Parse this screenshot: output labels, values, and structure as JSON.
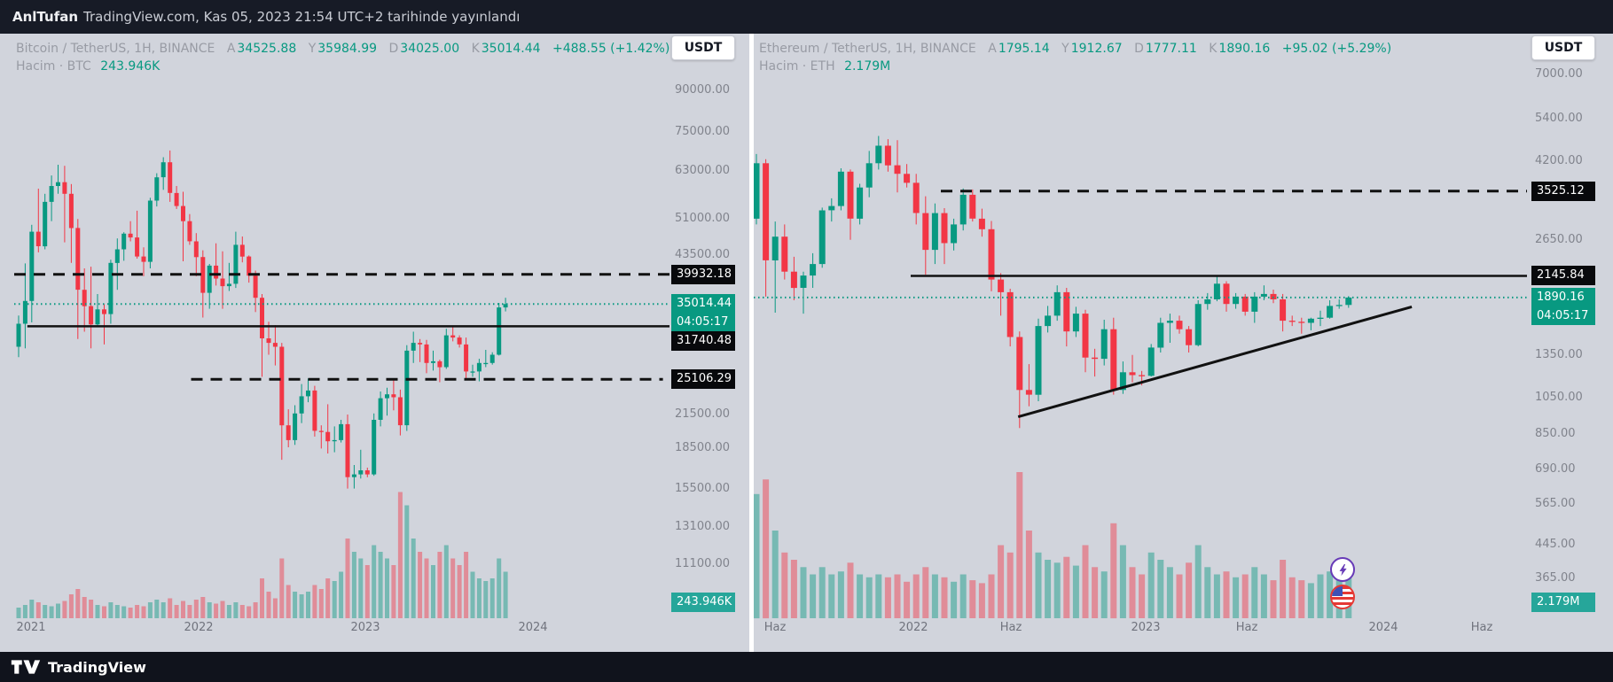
{
  "topbar": {
    "user": "AnlTufan",
    "rest": "TradingView.com, Kas 05, 2023 21:54 UTC+2 tarihinde yayınlandı"
  },
  "bottombar": {
    "brand": "TradingView"
  },
  "colors": {
    "up": "#089981",
    "down": "#f23645",
    "vol_up": "rgba(8,153,129,0.45)",
    "vol_down": "rgba(242,54,69,0.45)",
    "level_line": "#111111",
    "last_price_line": "#089981",
    "background": "#d1d4dc",
    "bar_dark": "#171b26"
  },
  "panels": [
    {
      "currency": "USDT",
      "header": {
        "symbol": "Bitcoin / TetherUS, 1H, BINANCE",
        "o_l": "A",
        "o_v": "34525.88",
        "h_l": "Y",
        "h_v": "35984.99",
        "l_l": "D",
        "l_v": "34025.00",
        "c_l": "K",
        "c_v": "35014.44",
        "change": "+488.55 (+1.42%)",
        "vol_label": "Hacim · BTC",
        "vol_value": "243.946K"
      },
      "last_price_text": "35014.44",
      "countdown": "04:05:17"
    },
    {
      "currency": "USDT",
      "header": {
        "symbol": "Ethereum / TetherUS, 1H, BINANCE",
        "o_l": "A",
        "o_v": "1795.14",
        "h_l": "Y",
        "h_v": "1912.67",
        "l_l": "D",
        "l_v": "1777.11",
        "c_l": "K",
        "c_v": "1890.16",
        "change": "+95.02 (+5.29%)",
        "vol_label": "Hacim · ETH",
        "vol_value": "2.179M"
      },
      "last_price_text": "1890.16",
      "countdown": "04:05:17"
    }
  ],
  "chart_data": [
    {
      "type": "candlestick",
      "title": "Bitcoin / TetherUS, 1H, BINANCE",
      "quote_currency": "USDT",
      "y_axis": {
        "scale": "log",
        "ticks": [
          "90000.00",
          "75000.00",
          "63000.00",
          "51000.00",
          "43500.00",
          "21500.00",
          "18500.00",
          "15500.00",
          "13100.00",
          "11100.00"
        ]
      },
      "x_ticks": [
        {
          "label": "2021",
          "f": 0.026
        },
        {
          "label": "2022",
          "f": 0.281
        },
        {
          "label": "2023",
          "f": 0.536
        },
        {
          "label": "2024",
          "f": 0.792
        }
      ],
      "last_price": 35014.44,
      "levels": [
        {
          "price": 39932.18,
          "label": "39932.18",
          "style": "dashed",
          "x1": 0,
          "x2": 1
        },
        {
          "price": 31740.48,
          "label": "31740.48",
          "style": "solid",
          "x1": 0.02,
          "x2": 1
        },
        {
          "price": 25106.29,
          "label": "25106.29",
          "style": "dashed",
          "x1": 0.27,
          "x2": 0.99
        }
      ],
      "volume_latest": "243.946K",
      "ohlc": [
        [
          29000,
          33300,
          27700,
          32100
        ],
        [
          32100,
          41900,
          28800,
          35500
        ],
        [
          35500,
          49700,
          32300,
          48200
        ],
        [
          48200,
          58300,
          44000,
          45200
        ],
        [
          45200,
          57000,
          44600,
          55000
        ],
        [
          55000,
          61800,
          50500,
          59000
        ],
        [
          59000,
          64800,
          57000,
          60000
        ],
        [
          60000,
          64500,
          46000,
          57000
        ],
        [
          57000,
          59500,
          42000,
          49000
        ],
        [
          49000,
          51000,
          30000,
          37300
        ],
        [
          37300,
          41000,
          31000,
          34700
        ],
        [
          34700,
          41300,
          28800,
          32000
        ],
        [
          32000,
          36600,
          31700,
          34200
        ],
        [
          34200,
          35000,
          29300,
          33500
        ],
        [
          33500,
          42600,
          32100,
          42000
        ],
        [
          42000,
          46800,
          37300,
          44600
        ],
        [
          44600,
          48100,
          42400,
          47800
        ],
        [
          47800,
          50500,
          46200,
          47000
        ],
        [
          47000,
          52900,
          42800,
          43200
        ],
        [
          43200,
          45000,
          39600,
          42200
        ],
        [
          42200,
          56000,
          41000,
          55300
        ],
        [
          55300,
          62400,
          53900,
          61300
        ],
        [
          61300,
          67000,
          58000,
          65500
        ],
        [
          65500,
          69000,
          55000,
          57200
        ],
        [
          57200,
          59000,
          53300,
          54000
        ],
        [
          54000,
          57500,
          42300,
          50500
        ],
        [
          50500,
          52100,
          45500,
          46200
        ],
        [
          46200,
          47900,
          39600,
          43100
        ],
        [
          43100,
          44400,
          33000,
          36800
        ],
        [
          36800,
          41800,
          34300,
          41500
        ],
        [
          41500,
          45800,
          38000,
          39200
        ],
        [
          39200,
          44200,
          34300,
          37900
        ],
        [
          37900,
          42000,
          37100,
          38300
        ],
        [
          38300,
          48200,
          37600,
          45500
        ],
        [
          45500,
          47200,
          42100,
          43200
        ],
        [
          43200,
          43400,
          38500,
          39700
        ],
        [
          39700,
          40600,
          33800,
          36000
        ],
        [
          36000,
          36600,
          25400,
          30100
        ],
        [
          30100,
          32400,
          28000,
          29500
        ],
        [
          29500,
          31900,
          26700,
          29000
        ],
        [
          29000,
          29500,
          17600,
          20500
        ],
        [
          20500,
          22000,
          18600,
          19200
        ],
        [
          19200,
          22400,
          18800,
          21600
        ],
        [
          21600,
          24600,
          20700,
          23300
        ],
        [
          23300,
          25200,
          22700,
          23900
        ],
        [
          23900,
          24400,
          19500,
          20000
        ],
        [
          20000,
          20500,
          18500,
          19900
        ],
        [
          19900,
          22500,
          18100,
          19100
        ],
        [
          19100,
          20400,
          18200,
          19200
        ],
        [
          19200,
          21000,
          19000,
          20600
        ],
        [
          20600,
          21500,
          15500,
          16300
        ],
        [
          16300,
          17200,
          15500,
          16500
        ],
        [
          16500,
          18400,
          16200,
          16800
        ],
        [
          16800,
          17000,
          16300,
          16500
        ],
        [
          16500,
          21600,
          16400,
          21000
        ],
        [
          21000,
          23800,
          20400,
          23100
        ],
        [
          23100,
          24200,
          21400,
          23500
        ],
        [
          23500,
          25200,
          21900,
          23200
        ],
        [
          23200,
          24000,
          19600,
          20500
        ],
        [
          20500,
          29200,
          20000,
          28500
        ],
        [
          28500,
          31000,
          27000,
          29500
        ],
        [
          29500,
          30000,
          27100,
          29300
        ],
        [
          29300,
          29900,
          25800,
          27000
        ],
        [
          27000,
          28500,
          26100,
          27200
        ],
        [
          27200,
          27400,
          24800,
          26500
        ],
        [
          26500,
          31400,
          26300,
          30500
        ],
        [
          30500,
          31800,
          29700,
          30200
        ],
        [
          30200,
          30500,
          28900,
          29300
        ],
        [
          29300,
          30200,
          25200,
          26000
        ],
        [
          26000,
          26800,
          25400,
          26000
        ],
        [
          26000,
          27500,
          24900,
          27000
        ],
        [
          27000,
          28600,
          26500,
          27000
        ],
        [
          27000,
          28300,
          26800,
          28000
        ],
        [
          28000,
          35200,
          27900,
          34500
        ],
        [
          34500,
          36000,
          33900,
          35014
        ]
      ],
      "volume": [
        0.08,
        0.1,
        0.14,
        0.12,
        0.1,
        0.09,
        0.11,
        0.13,
        0.18,
        0.22,
        0.16,
        0.14,
        0.1,
        0.09,
        0.12,
        0.1,
        0.09,
        0.08,
        0.1,
        0.09,
        0.12,
        0.14,
        0.12,
        0.15,
        0.1,
        0.13,
        0.1,
        0.14,
        0.16,
        0.12,
        0.11,
        0.13,
        0.1,
        0.12,
        0.1,
        0.09,
        0.12,
        0.3,
        0.2,
        0.15,
        0.45,
        0.25,
        0.2,
        0.18,
        0.2,
        0.25,
        0.22,
        0.3,
        0.28,
        0.35,
        0.6,
        0.5,
        0.45,
        0.4,
        0.55,
        0.5,
        0.45,
        0.4,
        0.95,
        0.85,
        0.6,
        0.5,
        0.45,
        0.4,
        0.5,
        0.55,
        0.45,
        0.4,
        0.5,
        0.35,
        0.3,
        0.28,
        0.3,
        0.45,
        0.35
      ]
    },
    {
      "type": "candlestick",
      "title": "Ethereum / TetherUS, 1H, BINANCE",
      "quote_currency": "USDT",
      "y_axis": {
        "scale": "log",
        "ticks": [
          "7000.00",
          "5400.00",
          "4200.00",
          "2650.00",
          "1350.00",
          "1050.00",
          "850.00",
          "690.00",
          "565.00",
          "445.00",
          "365.00"
        ]
      },
      "x_ticks": [
        {
          "label": "Haz",
          "f": 0.027
        },
        {
          "label": "2022",
          "f": 0.206
        },
        {
          "label": "Haz",
          "f": 0.332
        },
        {
          "label": "2023",
          "f": 0.507
        },
        {
          "label": "Haz",
          "f": 0.638
        },
        {
          "label": "2024",
          "f": 0.814
        },
        {
          "label": "Haz",
          "f": 0.941
        }
      ],
      "last_price": 1890.16,
      "levels": [
        {
          "price": 3525.12,
          "label": "3525.12",
          "style": "dashed",
          "x1": 0.242,
          "x2": 1
        },
        {
          "price": 2145.84,
          "label": "2145.84",
          "style": "solid",
          "x1": 0.203,
          "x2": 1
        }
      ],
      "trendline": {
        "x1": 0.342,
        "price1": 940,
        "x2": 0.851,
        "price2": 1790
      },
      "volume_latest": "2.179M",
      "ohlc": [
        [
          3000,
          4380,
          2900,
          4150
        ],
        [
          4150,
          4250,
          1900,
          2350
        ],
        [
          2350,
          2950,
          1730,
          2700
        ],
        [
          2700,
          2900,
          2100,
          2200
        ],
        [
          2200,
          2400,
          1860,
          2000
        ],
        [
          2000,
          2200,
          1720,
          2150
        ],
        [
          2150,
          2450,
          2000,
          2300
        ],
        [
          2300,
          3200,
          2250,
          3150
        ],
        [
          3150,
          3380,
          2950,
          3230
        ],
        [
          3230,
          4030,
          3150,
          3950
        ],
        [
          3950,
          4000,
          2650,
          3000
        ],
        [
          3000,
          3680,
          2900,
          3600
        ],
        [
          3600,
          4460,
          3400,
          4150
        ],
        [
          4150,
          4870,
          4000,
          4600
        ],
        [
          4600,
          4780,
          3950,
          4100
        ],
        [
          4100,
          4750,
          3500,
          3900
        ],
        [
          3900,
          4130,
          3600,
          3700
        ],
        [
          3700,
          3900,
          2900,
          3100
        ],
        [
          3100,
          3420,
          2160,
          2500
        ],
        [
          2500,
          3280,
          2300,
          3100
        ],
        [
          3100,
          3190,
          2300,
          2600
        ],
        [
          2600,
          3000,
          2490,
          2900
        ],
        [
          2900,
          3580,
          2800,
          3450
        ],
        [
          3450,
          3560,
          2950,
          3000
        ],
        [
          3000,
          3180,
          2700,
          2820
        ],
        [
          2820,
          2960,
          1960,
          2100
        ],
        [
          2100,
          2180,
          1700,
          1950
        ],
        [
          1950,
          1990,
          1420,
          1500
        ],
        [
          1500,
          1550,
          880,
          1100
        ],
        [
          1100,
          1280,
          1000,
          1070
        ],
        [
          1070,
          1670,
          1030,
          1600
        ],
        [
          1600,
          1800,
          1540,
          1700
        ],
        [
          1700,
          2030,
          1650,
          1950
        ],
        [
          1950,
          2000,
          1420,
          1550
        ],
        [
          1550,
          1790,
          1500,
          1720
        ],
        [
          1720,
          1760,
          1220,
          1330
        ],
        [
          1330,
          1400,
          1190,
          1320
        ],
        [
          1320,
          1660,
          1270,
          1570
        ],
        [
          1570,
          1680,
          1070,
          1100
        ],
        [
          1100,
          1300,
          1075,
          1220
        ],
        [
          1220,
          1350,
          1150,
          1200
        ],
        [
          1200,
          1230,
          1130,
          1195
        ],
        [
          1195,
          1440,
          1190,
          1410
        ],
        [
          1410,
          1680,
          1370,
          1630
        ],
        [
          1630,
          1720,
          1450,
          1650
        ],
        [
          1650,
          1700,
          1530,
          1570
        ],
        [
          1570,
          1600,
          1370,
          1430
        ],
        [
          1430,
          1860,
          1420,
          1820
        ],
        [
          1820,
          1940,
          1760,
          1870
        ],
        [
          1870,
          2140,
          1850,
          2050
        ],
        [
          2050,
          2080,
          1740,
          1820
        ],
        [
          1820,
          1940,
          1770,
          1900
        ],
        [
          1900,
          1930,
          1700,
          1740
        ],
        [
          1740,
          1950,
          1630,
          1900
        ],
        [
          1900,
          2030,
          1860,
          1930
        ],
        [
          1930,
          1980,
          1830,
          1870
        ],
        [
          1870,
          1930,
          1550,
          1650
        ],
        [
          1650,
          1700,
          1600,
          1640
        ],
        [
          1640,
          1680,
          1530,
          1630
        ],
        [
          1630,
          1680,
          1560,
          1670
        ],
        [
          1670,
          1750,
          1600,
          1680
        ],
        [
          1680,
          1860,
          1670,
          1800
        ],
        [
          1800,
          1870,
          1770,
          1810
        ],
        [
          1810,
          1905,
          1780,
          1890.16
        ]
      ],
      "volume": [
        0.85,
        0.95,
        0.6,
        0.45,
        0.4,
        0.35,
        0.3,
        0.35,
        0.3,
        0.32,
        0.38,
        0.3,
        0.28,
        0.3,
        0.28,
        0.3,
        0.25,
        0.3,
        0.35,
        0.3,
        0.28,
        0.25,
        0.3,
        0.26,
        0.24,
        0.3,
        0.5,
        0.45,
        1.0,
        0.6,
        0.45,
        0.4,
        0.38,
        0.42,
        0.36,
        0.5,
        0.35,
        0.32,
        0.65,
        0.5,
        0.35,
        0.3,
        0.45,
        0.4,
        0.35,
        0.3,
        0.38,
        0.5,
        0.35,
        0.3,
        0.32,
        0.28,
        0.3,
        0.35,
        0.3,
        0.26,
        0.4,
        0.28,
        0.26,
        0.24,
        0.3,
        0.32,
        0.28,
        0.3
      ]
    }
  ]
}
